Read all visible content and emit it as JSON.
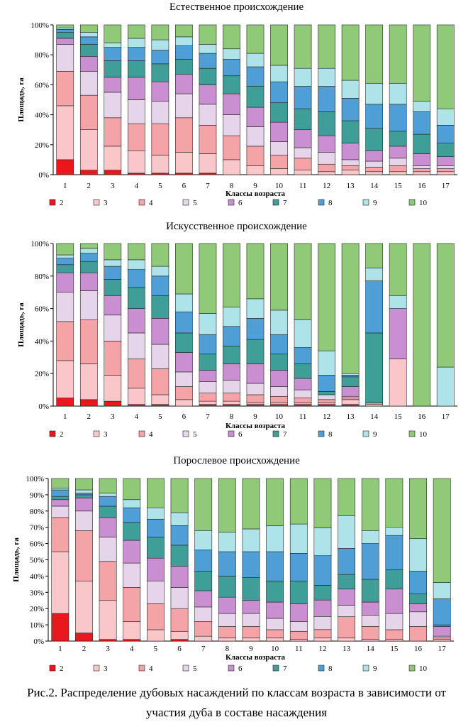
{
  "caption": {
    "line1": "Рис.2. Распределение дубовых насаждений по классам возраста в зависимости от",
    "line2": "участия дуба в составе насаждения"
  },
  "palette": {
    "2": "#e8181c",
    "3": "#f9c7c9",
    "4": "#f4a4a6",
    "5": "#e6d4ea",
    "6": "#c98fd0",
    "7": "#3f9e97",
    "8": "#4f9fd6",
    "9": "#aee3ea",
    "10": "#90c978"
  },
  "chart_data": [
    {
      "type": "bar",
      "stacked": true,
      "title": "Естественное происхождение",
      "xlabel": "Классы возраста",
      "ylabel": "Площадь, га",
      "ylim": [
        0,
        100
      ],
      "yticks": [
        "0%",
        "20%",
        "40%",
        "60%",
        "80%",
        "100%"
      ],
      "categories": [
        "1",
        "2",
        "3",
        "4",
        "5",
        "6",
        "7",
        "8",
        "9",
        "10",
        "11",
        "12",
        "13",
        "14",
        "15",
        "16",
        "17"
      ],
      "series": [
        {
          "name": "2",
          "values": [
            10,
            3,
            3,
            1,
            1,
            1,
            1,
            0,
            0,
            0,
            0,
            0,
            0,
            0,
            0,
            0,
            0
          ]
        },
        {
          "name": "3",
          "values": [
            36,
            27,
            16,
            15,
            12,
            14,
            13,
            10,
            6,
            4,
            3,
            2,
            3,
            2,
            2,
            2,
            2
          ]
        },
        {
          "name": "4",
          "values": [
            23,
            23,
            19,
            18,
            21,
            23,
            19,
            16,
            13,
            9,
            8,
            5,
            3,
            3,
            4,
            2,
            2
          ]
        },
        {
          "name": "5",
          "values": [
            18,
            16,
            17,
            16,
            15,
            16,
            14,
            14,
            13,
            9,
            7,
            8,
            4,
            4,
            5,
            2,
            2
          ]
        },
        {
          "name": "6",
          "values": [
            4,
            10,
            10,
            15,
            13,
            13,
            13,
            14,
            13,
            13,
            12,
            11,
            11,
            7,
            8,
            8,
            6
          ]
        },
        {
          "name": "7",
          "values": [
            4,
            8,
            11,
            11,
            12,
            10,
            11,
            12,
            14,
            13,
            14,
            16,
            15,
            15,
            10,
            13,
            9
          ]
        },
        {
          "name": "8",
          "values": [
            2,
            5,
            9,
            9,
            9,
            9,
            10,
            11,
            13,
            14,
            15,
            17,
            15,
            16,
            18,
            15,
            12
          ]
        },
        {
          "name": "9",
          "values": [
            1,
            3,
            3,
            6,
            7,
            6,
            6,
            7,
            9,
            11,
            12,
            12,
            12,
            14,
            14,
            7,
            11
          ]
        },
        {
          "name": "10",
          "values": [
            2,
            5,
            12,
            9,
            10,
            8,
            13,
            16,
            19,
            27,
            29,
            29,
            37,
            39,
            39,
            51,
            56
          ]
        }
      ]
    },
    {
      "type": "bar",
      "stacked": true,
      "title": "Искусственное происхождение",
      "xlabel": "Классы возраста",
      "ylabel": "Площадь, га",
      "ylim": [
        0,
        100
      ],
      "yticks": [
        "0%",
        "20%",
        "40%",
        "60%",
        "80%",
        "100%"
      ],
      "categories": [
        "1",
        "2",
        "3",
        "4",
        "5",
        "6",
        "7",
        "8",
        "9",
        "10",
        "11",
        "12",
        "13",
        "14",
        "15",
        "16",
        "17"
      ],
      "series": [
        {
          "name": "2",
          "values": [
            5,
            4,
            3,
            1,
            1,
            0,
            1,
            1,
            1,
            1,
            1,
            1,
            1,
            0,
            0,
            0,
            0
          ]
        },
        {
          "name": "3",
          "values": [
            23,
            22,
            16,
            10,
            6,
            4,
            2,
            2,
            1,
            1,
            1,
            1,
            3,
            1,
            29,
            0,
            0
          ]
        },
        {
          "name": "4",
          "values": [
            24,
            27,
            21,
            18,
            16,
            8,
            5,
            5,
            5,
            4,
            3,
            2,
            1,
            1,
            0,
            0,
            0
          ]
        },
        {
          "name": "5",
          "values": [
            18,
            18,
            16,
            16,
            15,
            9,
            7,
            8,
            7,
            6,
            5,
            3,
            1,
            0,
            0,
            0,
            0
          ]
        },
        {
          "name": "6",
          "values": [
            12,
            11,
            12,
            15,
            16,
            12,
            7,
            10,
            12,
            10,
            7,
            0,
            6,
            0,
            31,
            0,
            0
          ]
        },
        {
          "name": "7",
          "values": [
            5,
            7,
            10,
            13,
            14,
            12,
            10,
            11,
            15,
            10,
            9,
            2,
            6,
            43,
            0,
            0,
            0
          ]
        },
        {
          "name": "8",
          "values": [
            4,
            5,
            8,
            11,
            12,
            13,
            12,
            12,
            13,
            12,
            10,
            10,
            1,
            32,
            0,
            0,
            0
          ]
        },
        {
          "name": "9",
          "values": [
            2,
            3,
            4,
            6,
            6,
            11,
            13,
            12,
            12,
            15,
            17,
            15,
            1,
            8,
            8,
            0,
            24
          ]
        },
        {
          "name": "10",
          "values": [
            7,
            3,
            10,
            10,
            14,
            31,
            43,
            39,
            34,
            41,
            47,
            66,
            80,
            15,
            32,
            100,
            76
          ]
        }
      ]
    },
    {
      "type": "bar",
      "stacked": true,
      "title": "Порослевое происхождение",
      "xlabel": "Классы возраста",
      "ylabel": "Площадь, га",
      "ylim": [
        0,
        100
      ],
      "yticks": [
        "0%",
        "10%",
        "20%",
        "30%",
        "40%",
        "50%",
        "60%",
        "70%",
        "80%",
        "90%",
        "100%"
      ],
      "categories": [
        "1",
        "2",
        "3",
        "4",
        "5",
        "6",
        "7",
        "8",
        "9",
        "10",
        "11",
        "12",
        "13",
        "14",
        "15",
        "16",
        "17"
      ],
      "series": [
        {
          "name": "2",
          "values": [
            17,
            5,
            1,
            1,
            0,
            1,
            0,
            0,
            0,
            0,
            0,
            0,
            0,
            0,
            0,
            0,
            0
          ]
        },
        {
          "name": "3",
          "values": [
            38,
            32,
            24,
            11,
            7,
            5,
            3,
            2,
            2,
            2,
            1,
            2,
            2,
            1,
            1,
            0,
            1
          ]
        },
        {
          "name": "4",
          "values": [
            21,
            31,
            24,
            21,
            16,
            14,
            9,
            7,
            7,
            5,
            5,
            5,
            13,
            8,
            6,
            9,
            1
          ]
        },
        {
          "name": "5",
          "values": [
            7,
            12,
            15,
            15,
            14,
            13,
            9,
            8,
            8,
            7,
            6,
            8,
            7,
            7,
            10,
            9,
            1
          ]
        },
        {
          "name": "6",
          "values": [
            4,
            8,
            12,
            14,
            14,
            13,
            10,
            10,
            8,
            10,
            11,
            10,
            10,
            8,
            15,
            5,
            6
          ]
        },
        {
          "name": "7",
          "values": [
            2,
            2,
            7,
            11,
            13,
            13,
            12,
            13,
            14,
            13,
            14,
            9,
            9,
            14,
            12,
            6,
            1
          ]
        },
        {
          "name": "8",
          "values": [
            4,
            1,
            6,
            9,
            11,
            12,
            13,
            15,
            16,
            18,
            17,
            18,
            16,
            22,
            21,
            14,
            16
          ]
        },
        {
          "name": "9",
          "values": [
            1,
            2,
            2,
            5,
            7,
            8,
            12,
            12,
            14,
            16,
            18,
            17,
            20,
            8,
            5,
            20,
            10
          ]
        },
        {
          "name": "10",
          "values": [
            6,
            7,
            9,
            13,
            18,
            21,
            32,
            33,
            31,
            29,
            28,
            30,
            23,
            32,
            30,
            37,
            64
          ]
        }
      ]
    }
  ]
}
